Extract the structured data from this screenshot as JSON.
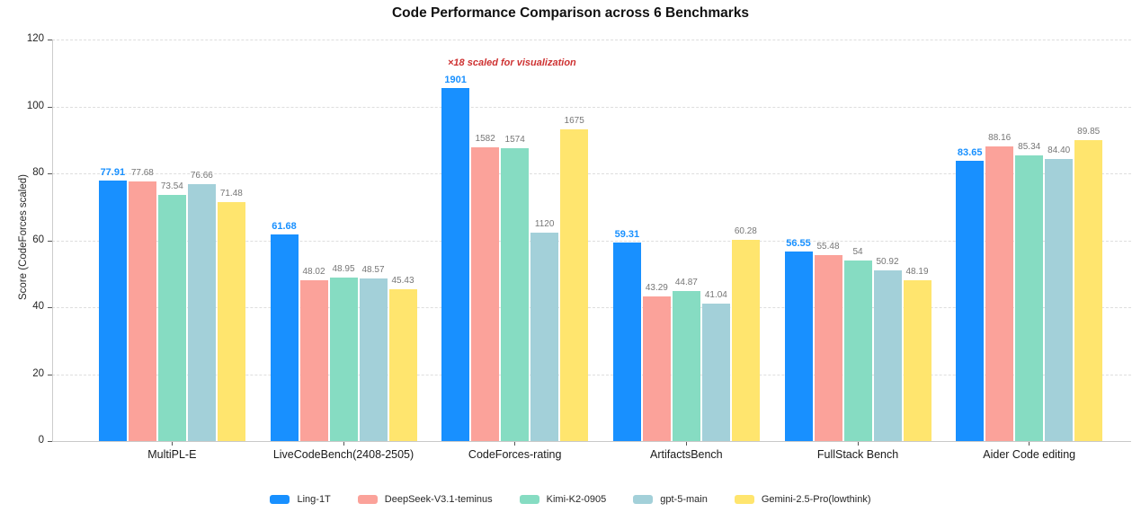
{
  "chart_data": {
    "type": "bar",
    "title": "Code Performance Comparison across 6 Benchmarks",
    "ylabel": "Score (CodeForces scaled)",
    "ylim": [
      0,
      120
    ],
    "yticks": [
      0,
      20,
      40,
      60,
      80,
      100,
      120
    ],
    "grid": "dashed horizontal gridlines",
    "legend_position": "bottom center",
    "categories": [
      "MultiPL-E",
      "LiveCodeBench(2408-2505)",
      "CodeForces-rating",
      "ArtifactsBench",
      "FullStack Bench",
      "Aider Code editing"
    ],
    "series": [
      {
        "name": "Ling-1T",
        "color": "#1890FF",
        "label_color": "#1890FF",
        "values": [
          77.91,
          61.68,
          1901,
          59.31,
          56.55,
          83.65
        ],
        "labels": [
          "77.91",
          "61.68",
          "1901",
          "59.31",
          "56.55",
          "83.65"
        ]
      },
      {
        "name": "DeepSeek-V3.1-teminus",
        "color": "#FBA29A",
        "label_color": "#767676",
        "values": [
          77.68,
          48.02,
          1582,
          43.29,
          55.48,
          88.16
        ],
        "labels": [
          "77.68",
          "48.02",
          "1582",
          "43.29",
          "55.48",
          "88.16"
        ]
      },
      {
        "name": "Kimi-K2-0905",
        "color": "#86DCC2",
        "label_color": "#767676",
        "values": [
          73.54,
          48.95,
          1574,
          44.87,
          54,
          85.34
        ],
        "labels": [
          "73.54",
          "48.95",
          "1574",
          "44.87",
          "54",
          "85.34"
        ]
      },
      {
        "name": "gpt-5-main",
        "color": "#A3D0D9",
        "label_color": "#767676",
        "values": [
          76.66,
          48.57,
          1120,
          41.04,
          50.92,
          84.4
        ],
        "labels": [
          "76.66",
          "48.57",
          "1120",
          "41.04",
          "50.92",
          "84.40"
        ]
      },
      {
        "name": "Gemini-2.5-Pro(lowthink)",
        "color": "#FFE56E",
        "label_color": "#767676",
        "values": [
          71.48,
          45.43,
          1675,
          60.28,
          48.19,
          89.85
        ],
        "labels": [
          "71.48",
          "45.43",
          "1675",
          "60.28",
          "48.19",
          "89.85"
        ]
      }
    ],
    "annotation": {
      "text": "×18 scaled for visualization",
      "color": "#CE3232"
    },
    "scaled_category_index": 2,
    "scale_factor": 18
  }
}
